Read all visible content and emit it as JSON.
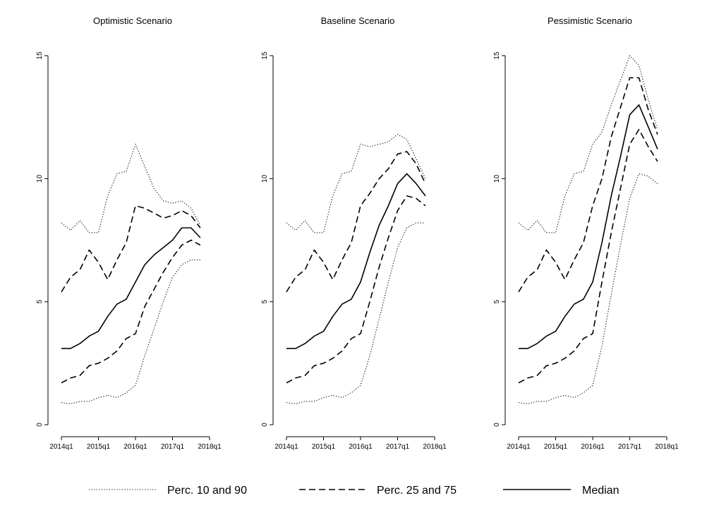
{
  "chart_data": {
    "type": "line",
    "x": [
      "2014q1",
      "2014q2",
      "2014q3",
      "2014q4",
      "2015q1",
      "2015q2",
      "2015q3",
      "2015q4",
      "2016q1",
      "2016q2",
      "2016q3",
      "2016q4",
      "2017q1",
      "2017q2",
      "2017q3",
      "2017q4"
    ],
    "xticks": [
      "2014q1",
      "2015q1",
      "2016q1",
      "2017q1",
      "2018q1"
    ],
    "yticks": [
      0,
      5,
      10,
      15
    ],
    "ylim": [
      0,
      15
    ],
    "xlim": [
      "2014q1",
      "2018q1"
    ],
    "grid": false,
    "legend_position": "bottom",
    "legend": [
      {
        "label": "Perc. 10 and 90",
        "style": "dotted"
      },
      {
        "label": "Perc. 25 and 75",
        "style": "dashed"
      },
      {
        "label": "Median",
        "style": "solid"
      }
    ],
    "panels": [
      {
        "title": "Optimistic Scenario",
        "series": [
          {
            "role": "p10",
            "style": "dotted",
            "values": [
              0.9,
              0.85,
              0.95,
              0.95,
              1.1,
              1.2,
              1.1,
              1.3,
              1.6,
              2.8,
              3.9,
              5.0,
              6.0,
              6.5,
              6.7,
              6.7
            ]
          },
          {
            "role": "p25",
            "style": "dashed",
            "values": [
              1.7,
              1.9,
              2.0,
              2.4,
              2.5,
              2.7,
              3.0,
              3.5,
              3.7,
              4.8,
              5.5,
              6.2,
              6.8,
              7.3,
              7.5,
              7.3
            ]
          },
          {
            "role": "median",
            "style": "solid",
            "values": [
              3.1,
              3.1,
              3.3,
              3.6,
              3.8,
              4.4,
              4.9,
              5.1,
              5.8,
              6.5,
              6.9,
              7.2,
              7.5,
              8.0,
              8.0,
              7.6
            ]
          },
          {
            "role": "p75",
            "style": "dashed",
            "values": [
              5.4,
              6.0,
              6.3,
              7.1,
              6.6,
              5.9,
              6.7,
              7.4,
              8.9,
              8.8,
              8.6,
              8.4,
              8.5,
              8.7,
              8.5,
              8.0
            ]
          },
          {
            "role": "p90",
            "style": "dotted",
            "values": [
              8.2,
              7.9,
              8.3,
              7.8,
              7.8,
              9.3,
              10.2,
              10.3,
              11.4,
              10.5,
              9.6,
              9.1,
              9.0,
              9.1,
              8.8,
              8.1
            ]
          }
        ]
      },
      {
        "title": "Baseline Scenario",
        "series": [
          {
            "role": "p10",
            "style": "dotted",
            "values": [
              0.9,
              0.85,
              0.95,
              0.95,
              1.1,
              1.2,
              1.1,
              1.3,
              1.6,
              2.8,
              4.3,
              5.8,
              7.2,
              8.0,
              8.2,
              8.2
            ]
          },
          {
            "role": "p25",
            "style": "dashed",
            "values": [
              1.7,
              1.9,
              2.0,
              2.4,
              2.5,
              2.7,
              3.0,
              3.5,
              3.7,
              5.0,
              6.4,
              7.6,
              8.7,
              9.3,
              9.2,
              8.9
            ]
          },
          {
            "role": "median",
            "style": "solid",
            "values": [
              3.1,
              3.1,
              3.3,
              3.6,
              3.8,
              4.4,
              4.9,
              5.1,
              5.8,
              7.0,
              8.1,
              8.9,
              9.8,
              10.2,
              9.8,
              9.3
            ]
          },
          {
            "role": "p75",
            "style": "dashed",
            "values": [
              5.4,
              6.0,
              6.3,
              7.1,
              6.6,
              5.9,
              6.7,
              7.4,
              8.9,
              9.4,
              10.0,
              10.4,
              11.0,
              11.1,
              10.6,
              9.8
            ]
          },
          {
            "role": "p90",
            "style": "dotted",
            "values": [
              8.2,
              7.9,
              8.3,
              7.8,
              7.8,
              9.3,
              10.2,
              10.3,
              11.4,
              11.3,
              11.4,
              11.5,
              11.8,
              11.6,
              10.8,
              10.0
            ]
          }
        ]
      },
      {
        "title": "Pessimistic Scenario",
        "series": [
          {
            "role": "p10",
            "style": "dotted",
            "values": [
              0.9,
              0.85,
              0.95,
              0.95,
              1.1,
              1.2,
              1.1,
              1.3,
              1.6,
              3.2,
              5.3,
              7.3,
              9.2,
              10.2,
              10.1,
              9.8
            ]
          },
          {
            "role": "p25",
            "style": "dashed",
            "values": [
              1.7,
              1.9,
              2.0,
              2.4,
              2.5,
              2.7,
              3.0,
              3.5,
              3.7,
              5.8,
              7.8,
              9.6,
              11.4,
              12.0,
              11.3,
              10.7
            ]
          },
          {
            "role": "median",
            "style": "solid",
            "values": [
              3.1,
              3.1,
              3.3,
              3.6,
              3.8,
              4.4,
              4.9,
              5.1,
              5.8,
              7.4,
              9.3,
              10.9,
              12.6,
              13.0,
              12.1,
              11.2
            ]
          },
          {
            "role": "p75",
            "style": "dashed",
            "values": [
              5.4,
              6.0,
              6.3,
              7.1,
              6.6,
              5.9,
              6.7,
              7.4,
              8.9,
              10.0,
              11.7,
              12.9,
              14.1,
              14.1,
              12.8,
              11.8
            ]
          },
          {
            "role": "p90",
            "style": "dotted",
            "values": [
              8.2,
              7.9,
              8.3,
              7.8,
              7.8,
              9.3,
              10.2,
              10.3,
              11.4,
              11.9,
              13.0,
              14.0,
              15.0,
              14.6,
              13.2,
              12.0
            ]
          }
        ]
      }
    ]
  }
}
